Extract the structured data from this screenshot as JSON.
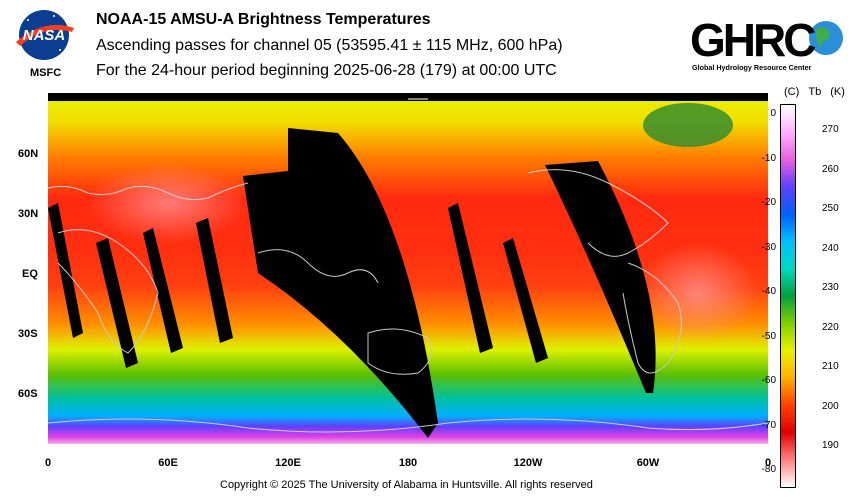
{
  "header": {
    "title": "NOAA-15 AMSU-A Brightness Temperatures",
    "subtitle": "Ascending passes for channel 05 (53595.41 ± 115 MHz, 600 hPa)",
    "period": "For the 24-hour period beginning 2025-06-28 (179) at 00:00 UTC",
    "nasa_logo_text": "NASA",
    "msfc_label": "MSFC",
    "ghrc_logo_text": "GHRC",
    "ghrc_subtitle": "Global Hydrology Resource Center"
  },
  "map": {
    "lat_labels": [
      "60N",
      "30N",
      "EQ",
      "30S",
      "60S"
    ],
    "lon_labels": [
      "0",
      "60E",
      "120E",
      "180",
      "120W",
      "60W",
      "0"
    ]
  },
  "colorbar": {
    "header_c": "(C)",
    "header_tb": "Tb",
    "header_k": "(K)",
    "celsius_ticks": [
      "0",
      "-10",
      "-20",
      "-30",
      "-40",
      "-50",
      "-60",
      "-70",
      "-80"
    ],
    "kelvin_ticks": [
      "270",
      "260",
      "250",
      "240",
      "230",
      "220",
      "210",
      "200",
      "190"
    ],
    "colors": [
      "#ffffff",
      "#ffb0ff",
      "#e860e0",
      "#6040ff",
      "#0060ff",
      "#00c0ff",
      "#00d8c0",
      "#00a040",
      "#80d000",
      "#e8f000",
      "#ffb000",
      "#ff4000",
      "#e00000",
      "#ff8080",
      "#ffffff"
    ]
  },
  "footer": {
    "copyright": "Copyright © 2025 The University of Alabama in Huntsville.  All rights reserved"
  }
}
